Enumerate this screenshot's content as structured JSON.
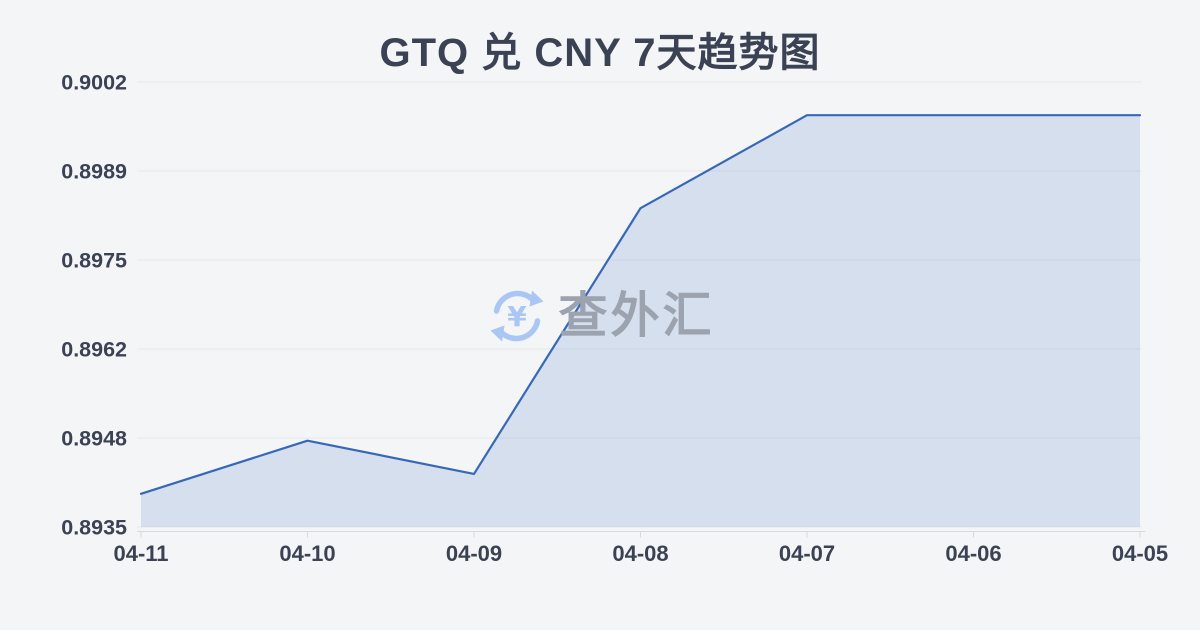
{
  "page": {
    "background": "#f4f5f7"
  },
  "chart_data": {
    "type": "area",
    "title": "GTQ 兑 CNY 7天趋势图",
    "xlabel": "",
    "ylabel": "",
    "categories": [
      "04-11",
      "04-10",
      "04-09",
      "04-08",
      "04-07",
      "04-06",
      "04-05"
    ],
    "series": [
      {
        "name": "GTQ 兑 CNY",
        "values": [
          0.894,
          0.8948,
          0.8943,
          0.8983,
          0.8997,
          0.8997,
          0.8997
        ]
      }
    ],
    "y_tick_labels": [
      "0.9002",
      "0.8989",
      "0.8975",
      "0.8962",
      "0.8948",
      "0.8935"
    ],
    "ylim": [
      0.8935,
      0.9002
    ],
    "grid": true,
    "legend": false,
    "line_color": "#3768b8",
    "fill_color": "rgba(61,110,187,0.16)",
    "grid_color": "#e4e7ec",
    "axis_color": "#d5dae1",
    "label_color": "#3a4254"
  },
  "watermark": {
    "text": "查外汇",
    "icon": "currency-exchange-icon",
    "icon_color": "#a9c6f4",
    "text_color": "#9ca3ae"
  }
}
